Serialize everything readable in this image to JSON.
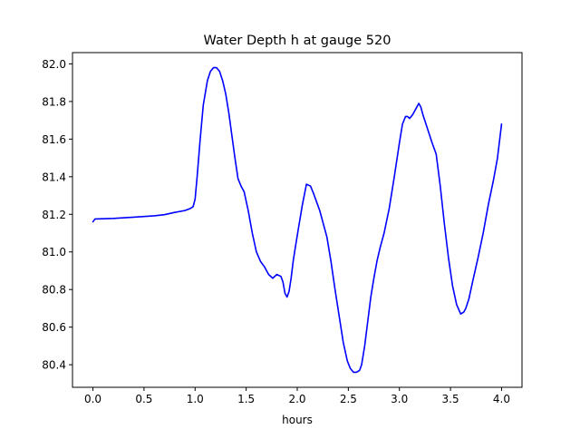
{
  "chart_data": {
    "type": "line",
    "title": "Water Depth h at gauge 520",
    "xlabel": "hours",
    "ylabel": "",
    "xlim": [
      -0.2,
      4.2
    ],
    "ylim": [
      80.28,
      82.06
    ],
    "x_ticks": [
      0.0,
      0.5,
      1.0,
      1.5,
      2.0,
      2.5,
      3.0,
      3.5,
      4.0
    ],
    "x_tick_labels": [
      "0.0",
      "0.5",
      "1.0",
      "1.5",
      "2.0",
      "2.5",
      "3.0",
      "3.5",
      "4.0"
    ],
    "y_ticks": [
      80.4,
      80.6,
      80.8,
      81.0,
      81.2,
      81.4,
      81.6,
      81.8,
      82.0
    ],
    "y_tick_labels": [
      "80.4",
      "80.6",
      "80.8",
      "81.0",
      "81.2",
      "81.4",
      "81.6",
      "81.8",
      "82.0"
    ],
    "grid": false,
    "legend": "none",
    "series": [
      {
        "color": "#0000ff",
        "x": [
          0.0,
          0.02,
          0.2,
          0.4,
          0.6,
          0.7,
          0.8,
          0.9,
          0.95,
          0.98,
          1.0,
          1.02,
          1.05,
          1.08,
          1.12,
          1.15,
          1.18,
          1.21,
          1.24,
          1.27,
          1.3,
          1.33,
          1.36,
          1.39,
          1.42,
          1.45,
          1.48,
          1.52,
          1.56,
          1.6,
          1.64,
          1.68,
          1.72,
          1.76,
          1.8,
          1.84,
          1.86,
          1.88,
          1.9,
          1.92,
          1.94,
          1.96,
          1.98,
          2.01,
          2.05,
          2.09,
          2.13,
          2.16,
          2.18,
          2.2,
          2.22,
          2.25,
          2.29,
          2.33,
          2.37,
          2.41,
          2.45,
          2.49,
          2.52,
          2.55,
          2.58,
          2.61,
          2.63,
          2.66,
          2.69,
          2.72,
          2.75,
          2.78,
          2.81,
          2.85,
          2.9,
          2.95,
          3.0,
          3.03,
          3.06,
          3.08,
          3.1,
          3.13,
          3.16,
          3.19,
          3.21,
          3.23,
          3.26,
          3.29,
          3.32,
          3.36,
          3.4,
          3.44,
          3.48,
          3.52,
          3.56,
          3.6,
          3.63,
          3.65,
          3.68,
          3.72,
          3.77,
          3.82,
          3.87,
          3.92,
          3.96,
          4.0
        ],
        "y": [
          81.16,
          81.175,
          81.178,
          81.185,
          81.192,
          81.198,
          81.21,
          81.22,
          81.23,
          81.24,
          81.28,
          81.4,
          81.6,
          81.78,
          81.91,
          81.96,
          81.98,
          81.98,
          81.96,
          81.91,
          81.84,
          81.74,
          81.62,
          81.5,
          81.39,
          81.35,
          81.32,
          81.22,
          81.1,
          81.0,
          80.95,
          80.92,
          80.88,
          80.86,
          80.88,
          80.87,
          80.84,
          80.78,
          80.76,
          80.79,
          80.86,
          80.95,
          81.02,
          81.12,
          81.25,
          81.36,
          81.35,
          81.31,
          81.28,
          81.25,
          81.22,
          81.16,
          81.08,
          80.95,
          80.8,
          80.66,
          80.52,
          80.42,
          80.38,
          80.36,
          80.36,
          80.37,
          80.4,
          80.5,
          80.63,
          80.76,
          80.86,
          80.95,
          81.02,
          81.1,
          81.23,
          81.4,
          81.58,
          81.68,
          81.72,
          81.72,
          81.71,
          81.73,
          81.76,
          81.79,
          81.77,
          81.73,
          81.68,
          81.63,
          81.58,
          81.52,
          81.35,
          81.15,
          80.97,
          80.82,
          80.72,
          80.67,
          80.68,
          80.7,
          80.75,
          80.85,
          80.97,
          81.1,
          81.25,
          81.38,
          81.5,
          81.68
        ]
      }
    ]
  }
}
